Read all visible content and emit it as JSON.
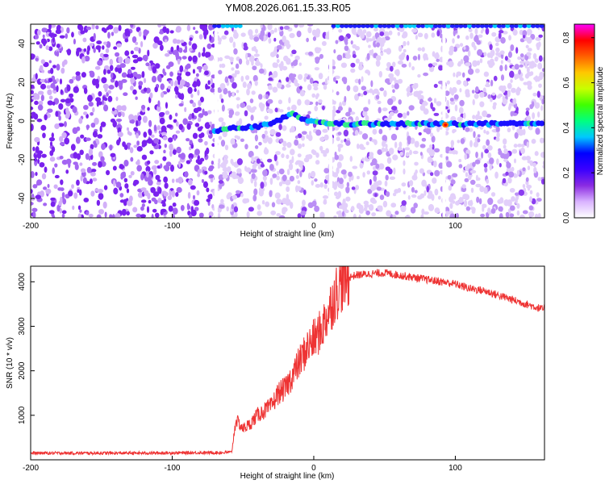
{
  "title": "YM08.2026.061.15.33.R05",
  "chart_data": [
    {
      "type": "heatmap",
      "xlabel": "Height of straight line (km)",
      "ylabel": "Frequency (Hz)",
      "xlim": [
        -200,
        163
      ],
      "ylim": [
        -50,
        50
      ],
      "xticks": [
        -200,
        -100,
        0,
        100
      ],
      "yticks": [
        -40,
        -20,
        0,
        20,
        40
      ],
      "colorbar": {
        "label": "Normalized spectral amplitude",
        "range": [
          0,
          0.86
        ],
        "ticks": [
          0.0,
          0.2,
          0.4,
          0.6,
          0.8
        ],
        "colors": [
          "#ffffff",
          "#d9b3ff",
          "#8a2be2",
          "#3a00ff",
          "#0000ff",
          "#00c8ff",
          "#00ff80",
          "#40ff00",
          "#c8ff00",
          "#ffc800",
          "#ff6000",
          "#ff0000",
          "#ff00ff"
        ]
      },
      "signal_trace": {
        "x": [
          -70,
          -60,
          -50,
          -40,
          -30,
          -20,
          -15,
          -10,
          -5,
          0,
          10,
          20,
          40,
          60,
          80,
          100,
          120,
          140,
          163
        ],
        "y": [
          -5,
          -4,
          -3.5,
          -3,
          -1,
          2,
          3.5,
          2,
          0.5,
          -0.5,
          -1,
          -1.5,
          -1.5,
          -1.5,
          -1.5,
          -1.5,
          -1.5,
          -1.5,
          -1.5
        ],
        "peak": {
          "x": 93,
          "y": -2,
          "value": 0.85
        }
      },
      "gaps_x": [
        -69,
        12,
        92
      ]
    },
    {
      "type": "line",
      "xlabel": "Height of straight line (km)",
      "ylabel": "SNR (10 * v/v)",
      "xlim": [
        -200,
        163
      ],
      "ylim": [
        0,
        4350
      ],
      "xticks": [
        -200,
        -100,
        0,
        100
      ],
      "yticks": [
        1000,
        2000,
        3000,
        4000
      ],
      "color": "#ee3333",
      "x": [
        -200,
        -180,
        -160,
        -140,
        -120,
        -100,
        -80,
        -65,
        -58,
        -55,
        -50,
        -45,
        -40,
        -35,
        -30,
        -25,
        -20,
        -15,
        -10,
        -5,
        0,
        5,
        10,
        15,
        20,
        25,
        30,
        40,
        50,
        60,
        70,
        80,
        90,
        100,
        110,
        120,
        130,
        140,
        150,
        160,
        163
      ],
      "y": [
        150,
        150,
        150,
        150,
        150,
        155,
        160,
        160,
        170,
        900,
        700,
        800,
        1000,
        1100,
        1200,
        1500,
        1600,
        1900,
        2200,
        2500,
        2700,
        2900,
        3300,
        3700,
        4000,
        4100,
        4150,
        4180,
        4200,
        4150,
        4100,
        4050,
        4000,
        3950,
        3850,
        3800,
        3700,
        3600,
        3500,
        3400,
        3380
      ]
    }
  ]
}
